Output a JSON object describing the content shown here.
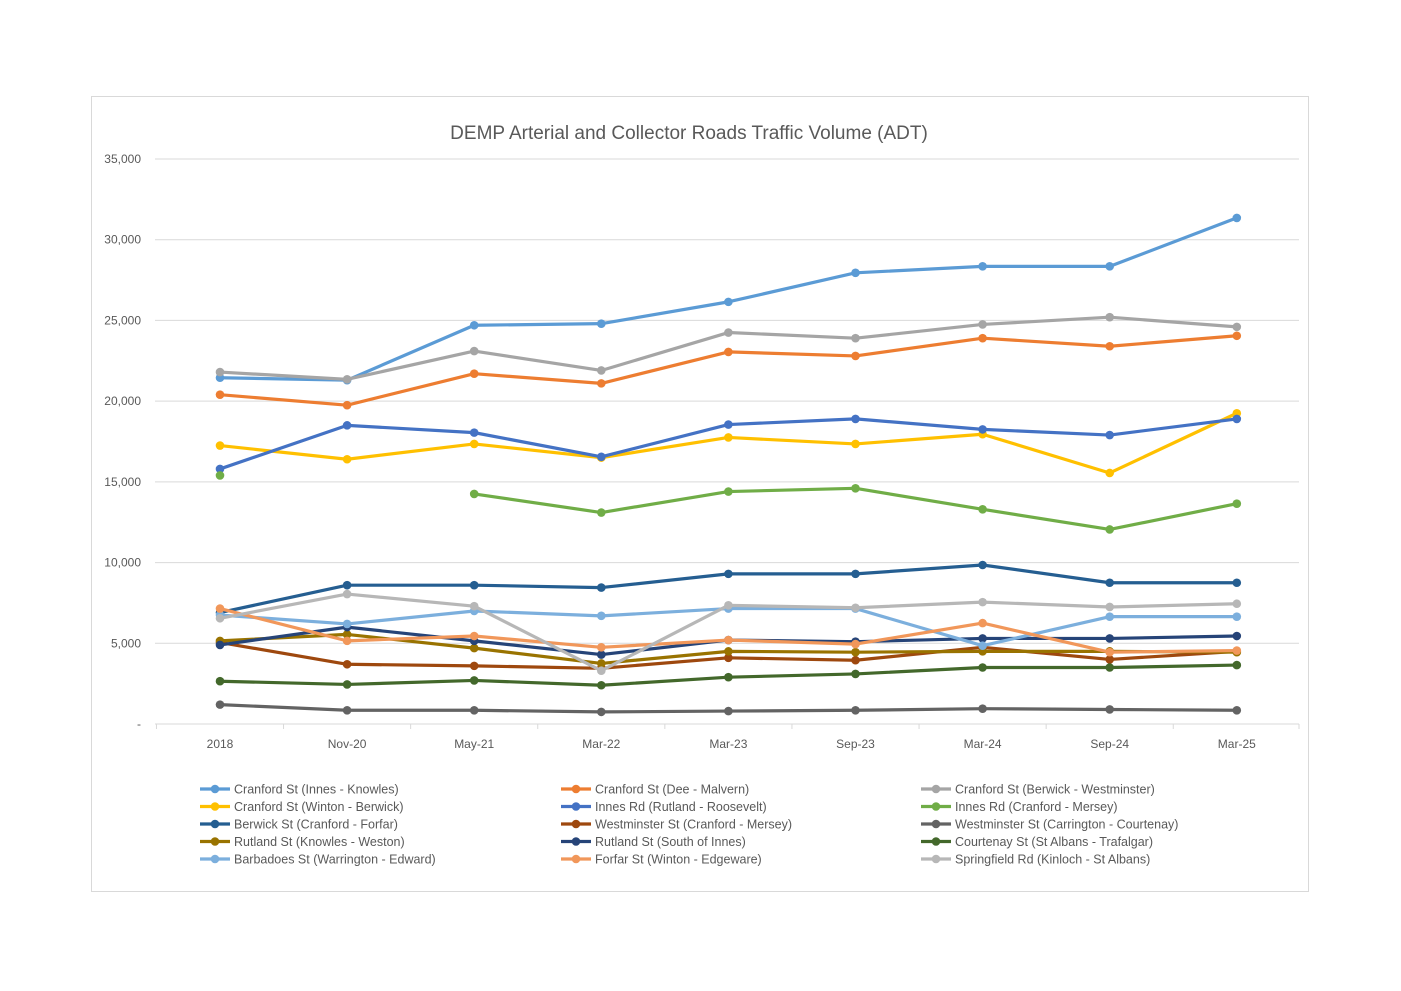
{
  "chart_data": {
    "type": "line",
    "title": "DEMP Arterial and Collector Roads Traffic Volume (ADT)",
    "xlabel": "",
    "ylabel": "",
    "categories": [
      "2018",
      "Nov-20",
      "May-21",
      "Mar-22",
      "Mar-23",
      "Sep-23",
      "Mar-24",
      "Sep-24",
      "Mar-25"
    ],
    "ylim": [
      0,
      35000
    ],
    "yticks": [
      0,
      5000,
      10000,
      15000,
      20000,
      25000,
      30000,
      35000
    ],
    "ytick_labels": [
      "-",
      "5,000",
      "10,000",
      "15,000",
      "20,000",
      "25,000",
      "30,000",
      "35,000"
    ],
    "grid": true,
    "legend_position": "bottom",
    "series": [
      {
        "name": "Cranford St (Innes - Knowles)",
        "color": "#5B9BD5",
        "values": [
          21450,
          21300,
          24700,
          24800,
          26150,
          27950,
          28350,
          28350,
          31350
        ]
      },
      {
        "name": "Cranford St (Dee - Malvern)",
        "color": "#ED7D31",
        "values": [
          20400,
          19750,
          21700,
          21100,
          23050,
          22800,
          23900,
          23400,
          24050
        ]
      },
      {
        "name": "Cranford St (Berwick - Westminster)",
        "color": "#A5A5A5",
        "values": [
          21800,
          21350,
          23100,
          21900,
          24250,
          23900,
          24750,
          25200,
          24600
        ]
      },
      {
        "name": "Cranford St (Winton - Berwick)",
        "color": "#FFC000",
        "values": [
          17250,
          16400,
          17350,
          16500,
          17750,
          17350,
          17950,
          15550,
          19250
        ]
      },
      {
        "name": "Innes Rd (Rutland - Roosevelt)",
        "color": "#4472C4",
        "values": [
          15800,
          18500,
          18050,
          16550,
          18550,
          18900,
          18250,
          17900,
          18900
        ]
      },
      {
        "name": "Innes Rd (Cranford - Mersey)",
        "color": "#70AD47",
        "values": [
          15400,
          null,
          14250,
          13100,
          14400,
          14600,
          13300,
          12050,
          13650
        ]
      },
      {
        "name": "Berwick St (Cranford - Forfar)",
        "color": "#255E91",
        "values": [
          6900,
          8600,
          8600,
          8450,
          9300,
          9300,
          9850,
          8750,
          8750
        ]
      },
      {
        "name": "Westminster St (Cranford - Mersey)",
        "color": "#9E480E",
        "values": [
          5050,
          3700,
          3600,
          3450,
          4100,
          3950,
          4750,
          4000,
          4500
        ]
      },
      {
        "name": "Westminster St (Carrington - Courtenay)",
        "color": "#636363",
        "values": [
          1200,
          850,
          850,
          750,
          800,
          850,
          950,
          900,
          850
        ]
      },
      {
        "name": "Rutland St (Knowles - Weston)",
        "color": "#997300",
        "values": [
          5150,
          5550,
          4700,
          3750,
          4500,
          4450,
          4500,
          4500,
          4450
        ]
      },
      {
        "name": "Rutland St (South of Innes)",
        "color": "#264478",
        "values": [
          4900,
          6000,
          5150,
          4300,
          5200,
          5100,
          5300,
          5300,
          5450
        ]
      },
      {
        "name": "Courtenay St (St Albans - Trafalgar)",
        "color": "#43682B",
        "values": [
          2650,
          2450,
          2700,
          2400,
          2900,
          3100,
          3500,
          3500,
          3650
        ]
      },
      {
        "name": "Barbadoes St (Warrington - Edward)",
        "color": "#7CAFDD",
        "values": [
          6750,
          6200,
          7000,
          6700,
          7150,
          7150,
          4850,
          6650,
          6650
        ]
      },
      {
        "name": "Forfar St (Winton - Edgeware)",
        "color": "#F1975A",
        "values": [
          7150,
          5150,
          5450,
          4750,
          5200,
          4950,
          6250,
          4450,
          4550
        ]
      },
      {
        "name": "Springfield Rd (Kinloch - St Albans)",
        "color": "#B7B7B7",
        "values": [
          6550,
          8050,
          7300,
          3300,
          7350,
          7200,
          7550,
          7250,
          7450
        ]
      }
    ]
  }
}
